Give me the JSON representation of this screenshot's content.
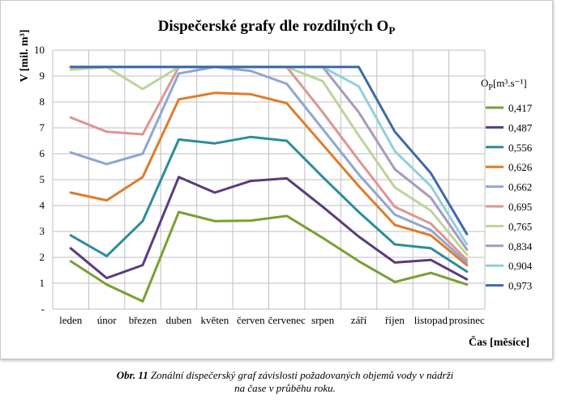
{
  "chart_data": {
    "type": "line",
    "title": "Dispečerské grafy dle rozdílných O",
    "title_sub": "P",
    "xlabel": "Čas [měsíce]",
    "ylabel": "V [mil. m³]",
    "ylim": [
      0,
      10
    ],
    "y_ticks": [
      "-",
      "1",
      "2",
      "3",
      "4",
      "5",
      "6",
      "7",
      "8",
      "9",
      "10"
    ],
    "grid": true,
    "categories": [
      "leden",
      "únor",
      "březen",
      "duben",
      "květen",
      "červen",
      "červenec",
      "srpen",
      "září",
      "říjen",
      "listopad",
      "prosinec"
    ],
    "legend_title": "O",
    "legend_title_sub": "P",
    "legend_title_unit": "[m³.s⁻¹]",
    "legend_position": "right",
    "series": [
      {
        "name": "0,417",
        "color": "#77a033",
        "values": [
          1.85,
          0.95,
          0.3,
          3.75,
          3.4,
          3.42,
          3.6,
          2.75,
          1.85,
          1.05,
          1.4,
          0.95
        ]
      },
      {
        "name": "0,487",
        "color": "#5c3b7d",
        "values": [
          2.35,
          1.2,
          1.7,
          5.1,
          4.5,
          4.95,
          5.05,
          3.95,
          2.8,
          1.8,
          1.9,
          1.15
        ]
      },
      {
        "name": "0,556",
        "color": "#2a8d9b",
        "values": [
          2.85,
          2.05,
          3.4,
          6.55,
          6.4,
          6.65,
          6.5,
          5.1,
          3.75,
          2.5,
          2.35,
          1.45
        ]
      },
      {
        "name": "0,626",
        "color": "#e07b2a",
        "values": [
          4.5,
          4.2,
          5.1,
          8.1,
          8.35,
          8.3,
          7.95,
          6.35,
          4.75,
          3.25,
          2.85,
          1.7
        ]
      },
      {
        "name": "0,662",
        "color": "#8ea6d4",
        "values": [
          6.05,
          5.6,
          6.0,
          9.1,
          9.35,
          9.2,
          8.7,
          6.95,
          5.2,
          3.65,
          3.05,
          1.8
        ]
      },
      {
        "name": "0,695",
        "color": "#df9593",
        "values": [
          7.4,
          6.85,
          6.75,
          9.35,
          9.35,
          9.35,
          9.35,
          7.6,
          5.75,
          3.95,
          3.3,
          1.9
        ]
      },
      {
        "name": "0,765",
        "color": "#bcd49a",
        "values": [
          9.25,
          9.35,
          8.5,
          9.35,
          9.35,
          9.35,
          9.35,
          8.8,
          6.7,
          4.7,
          3.8,
          2.1
        ]
      },
      {
        "name": "0,834",
        "color": "#a898c3",
        "values": [
          9.35,
          9.35,
          9.35,
          9.35,
          9.35,
          9.35,
          9.35,
          9.35,
          7.6,
          5.4,
          4.3,
          2.3
        ]
      },
      {
        "name": "0,904",
        "color": "#8fd0dc",
        "values": [
          9.35,
          9.35,
          9.35,
          9.35,
          9.35,
          9.35,
          9.35,
          9.35,
          8.6,
          6.1,
          4.75,
          2.5
        ]
      },
      {
        "name": "0,973",
        "color": "#3d6aa8",
        "values": [
          9.35,
          9.35,
          9.35,
          9.35,
          9.35,
          9.35,
          9.35,
          9.35,
          9.35,
          6.85,
          5.25,
          2.9
        ]
      }
    ]
  },
  "caption": {
    "lead": "Obr. 11",
    "line1": " Zonální dispečerský graf závislosti požadovaných objemů vody v nádrži",
    "line2": "na čase v průběhu roku."
  }
}
